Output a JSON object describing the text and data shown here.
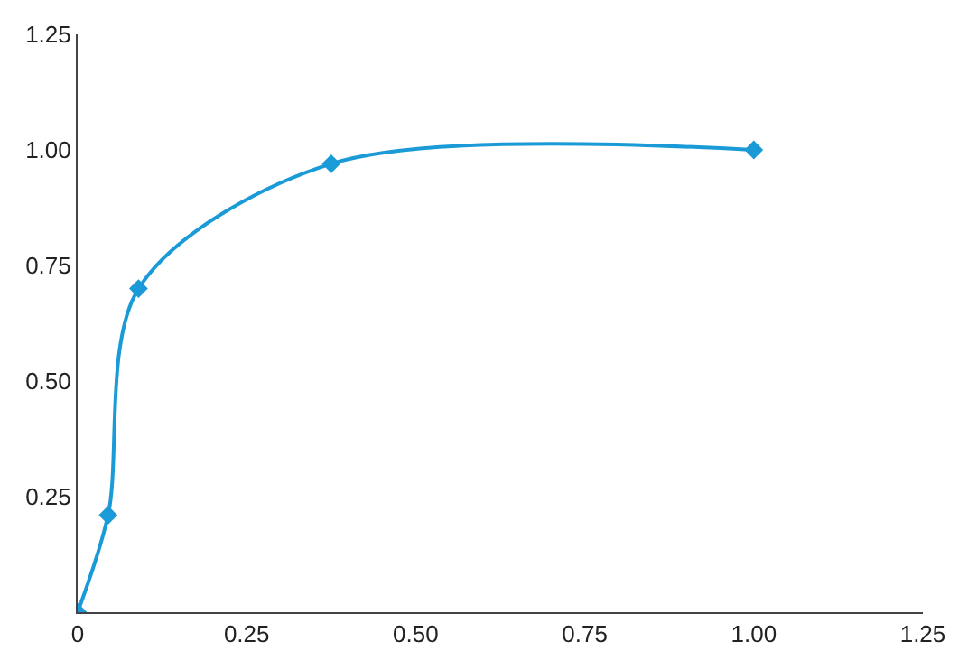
{
  "chart_data": {
    "type": "line",
    "x": [
      0,
      0.045,
      0.09,
      0.375,
      1.0
    ],
    "series": [
      {
        "color": "#1a9bd7",
        "values": [
          0,
          0.21,
          0.7,
          0.97,
          1.0
        ]
      }
    ],
    "xlim": [
      0,
      1.25
    ],
    "xticks": [
      0,
      0.25,
      {
        "value": 0.5,
        "label": "0.50"
      },
      0.75,
      {
        "value": 1,
        "label": "1.00"
      },
      1.25
    ],
    "ylim": [
      0,
      1.25
    ],
    "yticks": [
      0.25,
      {
        "value": 0.5,
        "label": "0.50"
      },
      0.75,
      {
        "value": 1,
        "label": "1.00"
      },
      1.25
    ],
    "marker": "diamond",
    "line_style": "solid"
  }
}
